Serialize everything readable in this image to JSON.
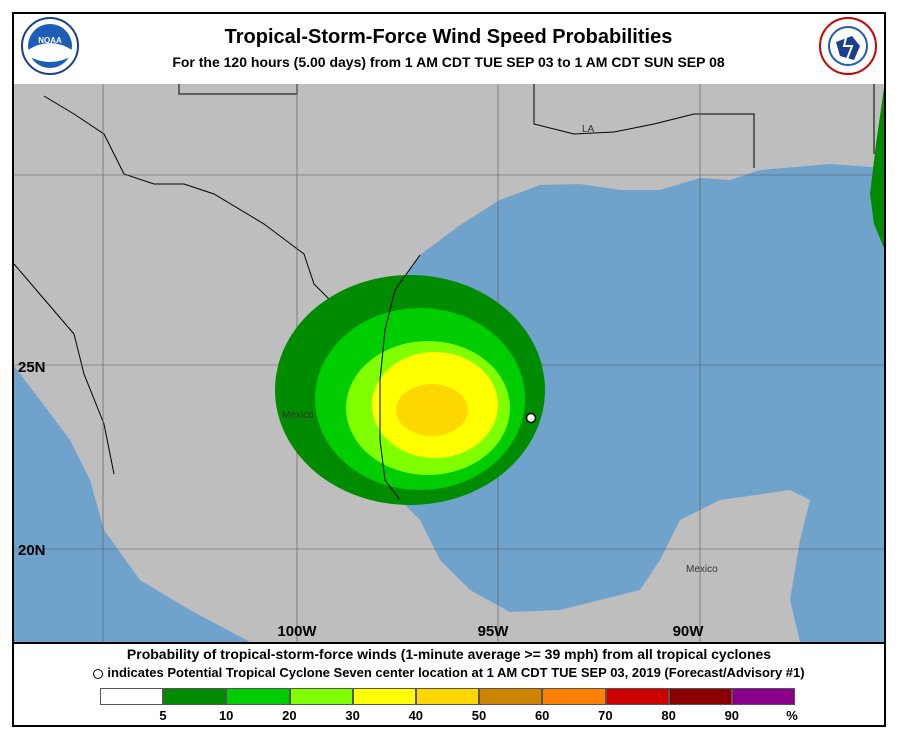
{
  "header": {
    "title": "Tropical-Storm-Force Wind Speed Probabilities",
    "subtitle": "For the 120 hours (5.00 days) from 1 AM CDT TUE SEP 03 to 1 AM CDT SUN SEP 08",
    "left_logo": {
      "name": "noaa-logo",
      "text": "NOAA"
    },
    "right_logo": {
      "name": "nws-logo",
      "text": "NATIONAL WEATHER SERVICE"
    }
  },
  "map": {
    "colors": {
      "land": "#bebebe",
      "water": "#6fa3cc",
      "border": "#000000"
    },
    "region_labels": [
      "LA",
      "Mexico",
      "Mexico"
    ],
    "longitude_labels": [
      "100W",
      "95W",
      "90W"
    ],
    "latitude_labels": [
      "25N",
      "20N"
    ],
    "storm_center_marker": "open-circle",
    "probability_contours_percent": [
      5,
      10,
      20,
      30,
      40
    ]
  },
  "caption": {
    "line1": "Probability of tropical-storm-force winds (1-minute average >= 39 mph) from all tropical cyclones",
    "line2": "indicates Potential Tropical Cyclone Seven center location at 1 AM CDT TUE SEP 03, 2019 (Forecast/Advisory #1)"
  },
  "legend": {
    "colors": [
      "#ffffff",
      "#008b00",
      "#00cd00",
      "#7fff00",
      "#ffff00",
      "#ffd700",
      "#cd8500",
      "#ff7f00",
      "#cd0000",
      "#8b0000",
      "#8b008b"
    ],
    "labels": [
      "5",
      "10",
      "20",
      "30",
      "40",
      "50",
      "60",
      "70",
      "80",
      "90",
      "%"
    ]
  }
}
